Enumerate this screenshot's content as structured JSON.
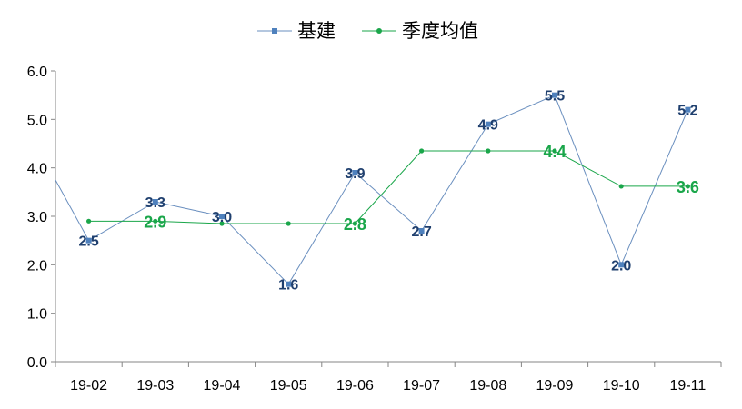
{
  "chart_data": {
    "type": "line",
    "categories": [
      "19-02",
      "19-03",
      "19-04",
      "19-05",
      "19-06",
      "19-07",
      "19-08",
      "19-09",
      "19-10",
      "19-11"
    ],
    "ylim": [
      0,
      6
    ],
    "yticks": [
      "0.0",
      "1.0",
      "2.0",
      "3.0",
      "4.0",
      "5.0",
      "6.0"
    ],
    "grid": false,
    "legend_position": "top-center",
    "series": [
      {
        "name": "基建",
        "color": "#6a8fbf",
        "marker": "square",
        "start_value": 3.75,
        "values": [
          2.5,
          3.3,
          3.0,
          1.6,
          3.9,
          2.7,
          4.9,
          5.5,
          2.0,
          5.2
        ],
        "labels": [
          "2.5",
          "3.3",
          "3.0",
          "1.6",
          "3.9",
          "2.7",
          "4.9",
          "5.5",
          "2.0",
          "5.2"
        ]
      },
      {
        "name": "季度均值",
        "color": "#1aa64a",
        "marker": "circle",
        "values": [
          2.9,
          2.9,
          2.85,
          2.85,
          2.85,
          4.35,
          4.35,
          4.35,
          3.62,
          3.62
        ],
        "labels": [
          "",
          "2.9",
          "",
          "",
          "2.8",
          "",
          "",
          "4.4",
          "",
          "3.6"
        ]
      }
    ]
  }
}
